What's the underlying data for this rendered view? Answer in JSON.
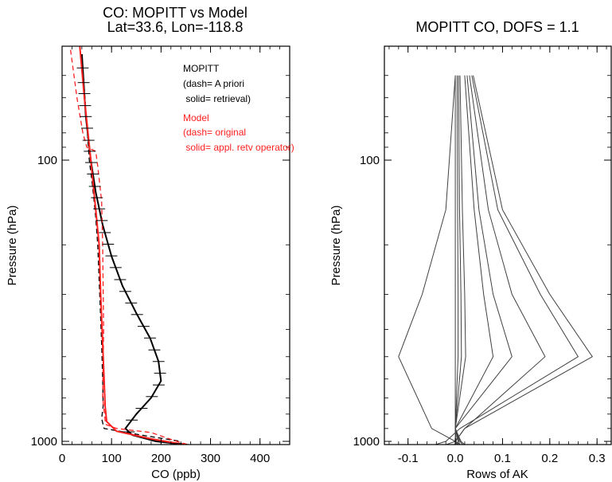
{
  "chart_data": [
    {
      "type": "line",
      "title": "CO: MOPITT vs Model",
      "subtitle": "Lat=33.6, Lon=-118.8",
      "xlabel": "CO (ppb)",
      "ylabel": "Pressure (hPa)",
      "xlim": [
        0,
        460
      ],
      "ylim": [
        1000,
        40
      ],
      "y_scale": "log",
      "x_ticks": [
        "0",
        "100",
        "200",
        "300",
        "400"
      ],
      "y_ticks": [
        "100",
        "1000"
      ],
      "legend": {
        "placement": "top-right",
        "mopitt_lines": [
          "MOPITT",
          "(dash= A priori",
          " solid= retrieval)"
        ],
        "model_lines": [
          "Model",
          "(dash= original",
          " solid= appl. retv operator)"
        ]
      },
      "colors": {
        "mopitt": "#000000",
        "model": "#ff2020"
      },
      "series": [
        {
          "key": "mopitt_apriori",
          "style": "dash",
          "color": "#000000",
          "x": [
            40,
            55,
            62,
            68,
            72,
            76,
            80,
            82,
            83,
            80,
            85,
            160,
            240
          ],
          "y": [
            42,
            100,
            125,
            160,
            200,
            300,
            450,
            600,
            750,
            830,
            900,
            950,
            1000
          ]
        },
        {
          "key": "mopitt_retrieval",
          "style": "solid",
          "color": "#000000",
          "x": [
            40,
            48,
            58,
            68,
            82,
            100,
            122,
            150,
            178,
            195,
            200,
            180,
            150,
            128,
            142,
            190,
            268
          ],
          "y": [
            42,
            70,
            100,
            130,
            170,
            220,
            280,
            350,
            430,
            520,
            610,
            700,
            800,
            900,
            950,
            1000,
            1035
          ]
        },
        {
          "key": "model_original",
          "style": "dash",
          "color": "#ff2020",
          "x": [
            15,
            30,
            42,
            50,
            68,
            72,
            80,
            82,
            84,
            82,
            88,
            110,
            180,
            232,
            265
          ],
          "y": [
            38,
            60,
            80,
            90,
            93,
            105,
            140,
            200,
            400,
            700,
            870,
            900,
            930,
            1000,
            1040
          ]
        },
        {
          "key": "model_retv_operator",
          "style": "solid",
          "color": "#ff2020",
          "x": [
            35,
            45,
            58,
            68,
            75,
            78,
            82,
            85,
            87,
            90,
            110,
            180,
            260
          ],
          "y": [
            38,
            60,
            100,
            150,
            200,
            300,
            450,
            600,
            750,
            850,
            920,
            980,
            1035
          ]
        }
      ],
      "error_bars": {
        "series": "mopitt_retrieval",
        "y": [
          47,
          53,
          58,
          64,
          70,
          77,
          85,
          93,
          102,
          112,
          124,
          136,
          149,
          164,
          181,
          199,
          219,
          241,
          266,
          293,
          322,
          354,
          390,
          429,
          473,
          520,
          572,
          630,
          693,
          763,
          840,
          925,
          1018
        ],
        "half_width": 12
      }
    },
    {
      "type": "line",
      "title": "MOPITT CO, DOFS = 1.1",
      "xlabel": "Rows of AK",
      "ylabel": "Pressure (hPa)",
      "xlim": [
        -0.15,
        0.33
      ],
      "ylim": [
        1000,
        40
      ],
      "y_scale": "log",
      "x_ticks": [
        "-0.1",
        "0.0",
        "0.1",
        "0.2",
        "0.3"
      ],
      "y_ticks": [
        "100",
        "1000"
      ],
      "color": "#404040",
      "series": [
        {
          "x": [
            0.0,
            0.0,
            0.0,
            0.0,
            0.0,
            0.0,
            -0.07
          ],
          "y": [
            50,
            150,
            300,
            500,
            900,
            1000,
            1100
          ]
        },
        {
          "x": [
            0.004,
            0.005,
            0.006,
            0.006,
            0.0,
            0.002,
            -0.01
          ],
          "y": [
            50,
            150,
            300,
            500,
            900,
            1000,
            1100
          ]
        },
        {
          "x": [
            0.007,
            0.009,
            0.012,
            0.013,
            0.0,
            0.006,
            0.004
          ],
          "y": [
            50,
            150,
            300,
            500,
            900,
            1000,
            1100
          ]
        },
        {
          "x": [
            0.01,
            0.015,
            0.02,
            0.022,
            0.0,
            0.008,
            0.012
          ],
          "y": [
            50,
            150,
            300,
            500,
            900,
            1000,
            1100
          ]
        },
        {
          "x": [
            0.02,
            0.04,
            0.06,
            0.08,
            0.0,
            0.01,
            0.03
          ],
          "y": [
            50,
            150,
            300,
            500,
            900,
            1000,
            1100
          ]
        },
        {
          "x": [
            0.025,
            0.05,
            0.08,
            0.12,
            0.0,
            0.012,
            0.04
          ],
          "y": [
            50,
            150,
            300,
            500,
            900,
            1000,
            1100
          ]
        },
        {
          "x": [
            0.03,
            0.07,
            0.12,
            0.19,
            0.02,
            0.0,
            0.04
          ],
          "y": [
            50,
            150,
            300,
            500,
            900,
            1000,
            1100
          ]
        },
        {
          "x": [
            0.035,
            0.09,
            0.18,
            0.26,
            0.01,
            -0.02,
            -0.1
          ],
          "y": [
            50,
            150,
            300,
            500,
            900,
            1000,
            1100
          ]
        },
        {
          "x": [
            0.038,
            0.1,
            0.2,
            0.29,
            0.02,
            0.0,
            0.02
          ],
          "y": [
            50,
            150,
            300,
            500,
            900,
            1000,
            1100
          ]
        },
        {
          "x": [
            0.0,
            -0.02,
            -0.07,
            -0.12,
            -0.05,
            0.0,
            0.01
          ],
          "y": [
            50,
            150,
            300,
            500,
            900,
            1000,
            1100
          ]
        }
      ]
    }
  ]
}
